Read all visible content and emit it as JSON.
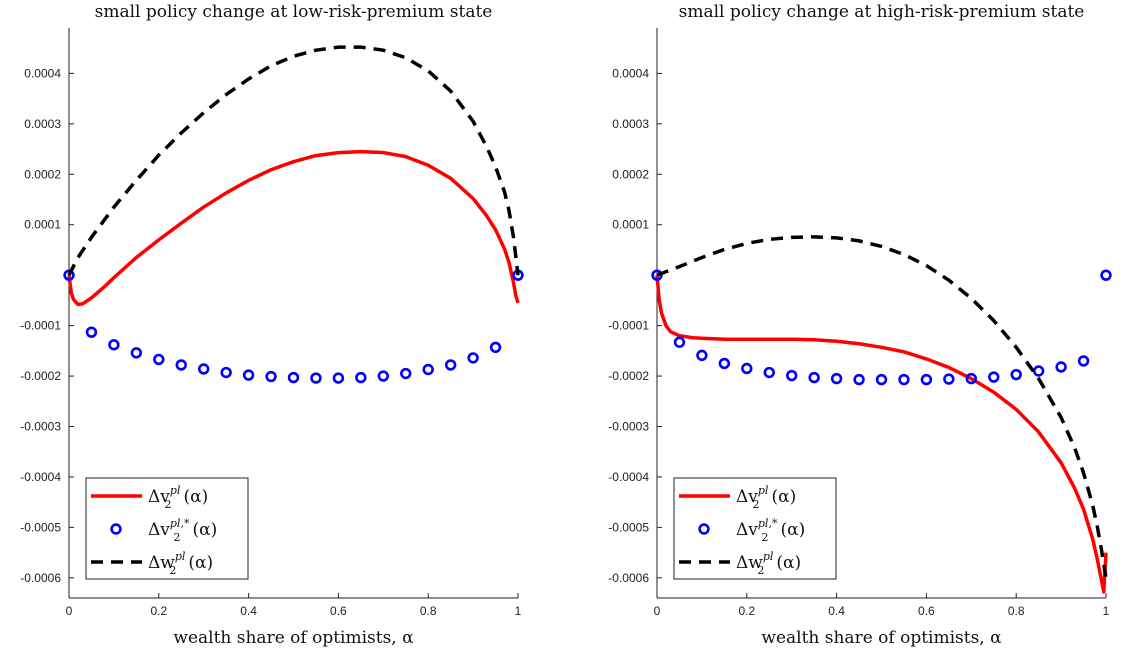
{
  "chart_data": [
    {
      "type": "line",
      "title": "small policy change at low-risk-premium state",
      "xlabel": "wealth share of optimists, α",
      "ylabel": "",
      "xlim": [
        0,
        1
      ],
      "ylim": [
        -0.00064,
        0.00049
      ],
      "xticks": [
        0,
        0.2,
        0.4,
        0.6,
        0.8,
        1
      ],
      "xtick_labels": [
        "0",
        "0.2",
        "0.4",
        "0.6",
        "0.8",
        "1"
      ],
      "yticks": [
        -0.0006,
        -0.0005,
        -0.0004,
        -0.0003,
        -0.0002,
        -0.0001,
        0.0001,
        0.0002,
        0.0003,
        0.0004
      ],
      "ytick_labels": [
        "-0.0006",
        "-0.0005",
        "-0.0004",
        "-0.0003",
        "-0.0002",
        "-0.0001",
        "0.0001",
        "0.0002",
        "0.0003",
        "0.0004"
      ],
      "grid": false,
      "legend_position": "bottom-left",
      "series": [
        {
          "name": "Δv₂^pl(α)",
          "style": "solid",
          "color": "#ff0000",
          "x": [
            0,
            0.005,
            0.01,
            0.02,
            0.03,
            0.05,
            0.08,
            0.1,
            0.15,
            0.2,
            0.25,
            0.3,
            0.35,
            0.4,
            0.45,
            0.5,
            0.55,
            0.6,
            0.65,
            0.7,
            0.75,
            0.8,
            0.85,
            0.9,
            0.93,
            0.95,
            0.97,
            0.98,
            0.99,
            0.995,
            1
          ],
          "y": [
            0,
            -3.5e-05,
            -4.8e-05,
            -5.8e-05,
            -5.7e-05,
            -4.5e-05,
            -2.2e-05,
            -5e-06,
            3.5e-05,
            7e-05,
            0.000103,
            0.000135,
            0.000163,
            0.000188,
            0.000209,
            0.000225,
            0.000237,
            0.000243,
            0.000245,
            0.000243,
            0.000235,
            0.000218,
            0.000192,
            0.000152,
            0.000118,
            9e-05,
            5.2e-05,
            2.5e-05,
            -1.5e-05,
            -4e-05,
            -5.5e-05
          ]
        },
        {
          "name": "Δv₂^pl,*(α)",
          "style": "markers",
          "color": "#0000ff",
          "x": [
            0,
            0.05,
            0.1,
            0.15,
            0.2,
            0.25,
            0.3,
            0.35,
            0.4,
            0.45,
            0.5,
            0.55,
            0.6,
            0.65,
            0.7,
            0.75,
            0.8,
            0.85,
            0.9,
            0.95,
            1
          ],
          "y": [
            0,
            -0.000113,
            -0.000138,
            -0.000154,
            -0.000167,
            -0.000178,
            -0.000186,
            -0.000193,
            -0.000198,
            -0.000201,
            -0.000203,
            -0.000204,
            -0.000204,
            -0.000203,
            -0.0002,
            -0.000195,
            -0.000187,
            -0.000178,
            -0.000164,
            -0.000143,
            0
          ]
        },
        {
          "name": "Δw₂^pl(α)",
          "style": "dashed",
          "color": "#000000",
          "x": [
            0,
            0.02,
            0.05,
            0.1,
            0.15,
            0.2,
            0.25,
            0.3,
            0.35,
            0.4,
            0.45,
            0.5,
            0.55,
            0.6,
            0.65,
            0.7,
            0.75,
            0.8,
            0.85,
            0.9,
            0.93,
            0.95,
            0.97,
            0.98,
            0.99,
            1
          ],
          "y": [
            0,
            3.5e-05,
            7.5e-05,
            0.000135,
            0.000188,
            0.000238,
            0.000282,
            0.000322,
            0.000358,
            0.000389,
            0.000415,
            0.000434,
            0.000446,
            0.000452,
            0.000452,
            0.000446,
            0.000431,
            0.000405,
            0.000365,
            0.000305,
            0.000255,
            0.000215,
            0.000165,
            0.000128,
            7.5e-05,
            0
          ]
        }
      ]
    },
    {
      "type": "line",
      "title": "small policy change at high-risk-premium state",
      "xlabel": "wealth share of optimists, α",
      "ylabel": "",
      "xlim": [
        0,
        1
      ],
      "ylim": [
        -0.00064,
        0.00049
      ],
      "xticks": [
        0,
        0.2,
        0.4,
        0.6,
        0.8,
        1
      ],
      "xtick_labels": [
        "0",
        "0.2",
        "0.4",
        "0.6",
        "0.8",
        "1"
      ],
      "yticks": [
        -0.0006,
        -0.0005,
        -0.0004,
        -0.0003,
        -0.0002,
        -0.0001,
        0.0001,
        0.0002,
        0.0003,
        0.0004
      ],
      "ytick_labels": [
        "-0.0006",
        "-0.0005",
        "-0.0004",
        "-0.0003",
        "-0.0002",
        "-0.0001",
        "0.0001",
        "0.0002",
        "0.0003",
        "0.0004"
      ],
      "grid": false,
      "legend_position": "bottom-left",
      "series": [
        {
          "name": "Δv₂^pl(α)",
          "style": "solid",
          "color": "#ff0000",
          "x": [
            0,
            0.005,
            0.01,
            0.02,
            0.03,
            0.05,
            0.08,
            0.1,
            0.15,
            0.2,
            0.25,
            0.3,
            0.35,
            0.4,
            0.45,
            0.5,
            0.55,
            0.6,
            0.65,
            0.7,
            0.75,
            0.8,
            0.85,
            0.9,
            0.93,
            0.95,
            0.97,
            0.98,
            0.99,
            0.995,
            1
          ],
          "y": [
            0,
            -5e-05,
            -7.5e-05,
            -0.0001,
            -0.000112,
            -0.00012,
            -0.000124,
            -0.000125,
            -0.000127,
            -0.000127,
            -0.000127,
            -0.000127,
            -0.000128,
            -0.000131,
            -0.000136,
            -0.000143,
            -0.000152,
            -0.000166,
            -0.000183,
            -0.000205,
            -0.000232,
            -0.000266,
            -0.000311,
            -0.000372,
            -0.000422,
            -0.000464,
            -0.000522,
            -0.00056,
            -0.000605,
            -0.000628,
            -0.00055
          ]
        },
        {
          "name": "Δv₂^pl,*(α)",
          "style": "markers",
          "color": "#0000ff",
          "x": [
            0,
            0.05,
            0.1,
            0.15,
            0.2,
            0.25,
            0.3,
            0.35,
            0.4,
            0.45,
            0.5,
            0.55,
            0.6,
            0.65,
            0.7,
            0.75,
            0.8,
            0.85,
            0.9,
            0.95,
            1
          ],
          "y": [
            0,
            -0.000133,
            -0.000159,
            -0.000175,
            -0.000185,
            -0.000193,
            -0.000199,
            -0.000203,
            -0.000205,
            -0.000207,
            -0.000207,
            -0.000207,
            -0.000207,
            -0.000206,
            -0.000205,
            -0.000202,
            -0.000197,
            -0.00019,
            -0.000182,
            -0.00017,
            0
          ]
        },
        {
          "name": "Δw₂^pl(α)",
          "style": "dashed",
          "color": "#000000",
          "x": [
            0,
            0.05,
            0.1,
            0.15,
            0.2,
            0.25,
            0.3,
            0.35,
            0.4,
            0.45,
            0.5,
            0.55,
            0.6,
            0.65,
            0.7,
            0.75,
            0.8,
            0.85,
            0.9,
            0.93,
            0.95,
            0.97,
            0.98,
            0.99,
            1
          ],
          "y": [
            0,
            1.7e-05,
            3.5e-05,
            5.1e-05,
            6.3e-05,
            7.1e-05,
            7.5e-05,
            7.6e-05,
            7.4e-05,
            6.8e-05,
            5.7e-05,
            4.1e-05,
            1.9e-05,
            -1e-05,
            -4.6e-05,
            -9e-05,
            -0.000143,
            -0.000205,
            -0.000282,
            -0.000342,
            -0.000392,
            -0.000455,
            -0.000495,
            -0.000545,
            -0.0006
          ]
        }
      ]
    }
  ],
  "legend_entries": [
    {
      "base": "Δv",
      "sub": "2",
      "sup": "pl",
      "arg": "(α)",
      "style": "solid",
      "color": "#ff0000"
    },
    {
      "base": "Δv",
      "sub": "2",
      "sup": "pl,*",
      "arg": "(α)",
      "style": "markers",
      "color": "#0000ff"
    },
    {
      "base": "Δw",
      "sub": "2",
      "sup": "pl",
      "arg": "(α)",
      "style": "dashed",
      "color": "#000000"
    }
  ]
}
